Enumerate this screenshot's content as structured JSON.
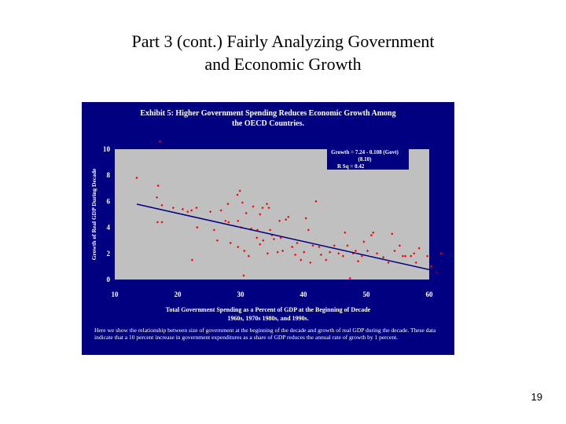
{
  "slide": {
    "title_line1": "Part 3 (cont.) Fairly Analyzing Government",
    "title_line2": "and Economic Growth",
    "page_number": "19"
  },
  "exhibit": {
    "title_line1": "Exhibit 5: Higher Government Spending Reduces Economic Growth Among",
    "title_line2": "the OECD Countries.",
    "caption": "Here we show the relationship between size of government at the beginning of the decade and growth of real GDP during the decade. These data indicate that a 10 percent increase in government expenditures as a share of GDP reduces the annual rate of growth by 1 percent."
  },
  "chart_data": {
    "type": "scatter",
    "xlabel_line1": "Total Government Spending as a Percent of GDP at the Beginning of Decade",
    "xlabel_line2": "1960s, 1970s 1980s, and 1990s.",
    "ylabel": "Growth of Real GDP During Decade",
    "xlim": [
      10,
      60
    ],
    "ylim": [
      0,
      10
    ],
    "x_ticks": [
      "10",
      "20",
      "30",
      "40",
      "50",
      "60"
    ],
    "y_ticks": [
      "0",
      "2",
      "4",
      "6",
      "8",
      "10"
    ],
    "regression": {
      "equation": "Growth = 7.24 - 0.108 (Govt)",
      "t_stat": "(8.10)",
      "r_squared": "R Sq = 0.42",
      "slope": -0.108,
      "intercept": 7.24,
      "x_range": [
        13.5,
        62
      ]
    },
    "colors": {
      "background": "#000080",
      "plot_area": "#c0c0c0",
      "points": "#ff0000",
      "trend_line": "#000080",
      "text": "#ffffff"
    },
    "points": [
      [
        13.5,
        7.8
      ],
      [
        17.2,
        10.6
      ],
      [
        16.9,
        7.2
      ],
      [
        16.7,
        6.3
      ],
      [
        16.8,
        4.4
      ],
      [
        17.5,
        4.4
      ],
      [
        17.5,
        5.7
      ],
      [
        19.3,
        5.5
      ],
      [
        20.8,
        5.4
      ],
      [
        21.6,
        5.2
      ],
      [
        22.2,
        5.3
      ],
      [
        23.0,
        5.5
      ],
      [
        22.3,
        1.5
      ],
      [
        23.1,
        4.0
      ],
      [
        25.2,
        5.2
      ],
      [
        25.8,
        3.8
      ],
      [
        26.3,
        3.0
      ],
      [
        26.9,
        5.3
      ],
      [
        27.6,
        4.5
      ],
      [
        28.1,
        4.4
      ],
      [
        28.0,
        5.8
      ],
      [
        28.4,
        2.8
      ],
      [
        29.5,
        6.5
      ],
      [
        29.9,
        6.8
      ],
      [
        29.6,
        4.5
      ],
      [
        30.3,
        5.9
      ],
      [
        30.9,
        5.1
      ],
      [
        30.1,
        4.0
      ],
      [
        29.6,
        2.5
      ],
      [
        30.6,
        2.2
      ],
      [
        31.3,
        1.8
      ],
      [
        30.5,
        0.3
      ],
      [
        31.7,
        3.9
      ],
      [
        32.0,
        5.6
      ],
      [
        32.6,
        3.2
      ],
      [
        33.1,
        5.0
      ],
      [
        33.5,
        5.5
      ],
      [
        32.7,
        3.8
      ],
      [
        33.1,
        2.7
      ],
      [
        33.6,
        3.0
      ],
      [
        34.2,
        5.8
      ],
      [
        34.5,
        5.5
      ],
      [
        34.7,
        3.8
      ],
      [
        35.0,
        3.4
      ],
      [
        34.3,
        2.0
      ],
      [
        35.3,
        3.1
      ],
      [
        35.9,
        2.1
      ],
      [
        36.2,
        4.5
      ],
      [
        36.4,
        3.2
      ],
      [
        36.7,
        2.2
      ],
      [
        37.2,
        4.6
      ],
      [
        37.6,
        4.8
      ],
      [
        38.2,
        2.5
      ],
      [
        38.7,
        1.9
      ],
      [
        39.0,
        2.8
      ],
      [
        39.6,
        1.5
      ],
      [
        40.1,
        2.1
      ],
      [
        41.1,
        1.3
      ],
      [
        40.4,
        4.7
      ],
      [
        40.8,
        3.8
      ],
      [
        41.5,
        2.6
      ],
      [
        42.5,
        2.5
      ],
      [
        42.0,
        6.0
      ],
      [
        42.8,
        1.9
      ],
      [
        43.6,
        1.5
      ],
      [
        44.2,
        2.1
      ],
      [
        44.9,
        2.6
      ],
      [
        45.6,
        2.0
      ],
      [
        46.3,
        1.8
      ],
      [
        46.6,
        3.6
      ],
      [
        47.0,
        2.6
      ],
      [
        47.4,
        0.1
      ],
      [
        47.9,
        2.0
      ],
      [
        48.3,
        2.2
      ],
      [
        48.7,
        1.4
      ],
      [
        49.3,
        1.8
      ],
      [
        49.6,
        2.9
      ],
      [
        50.2,
        2.2
      ],
      [
        50.8,
        3.4
      ],
      [
        51.1,
        3.6
      ],
      [
        51.7,
        2.0
      ],
      [
        52.7,
        1.7
      ],
      [
        53.5,
        1.3
      ],
      [
        54.1,
        3.5
      ],
      [
        54.5,
        2.2
      ],
      [
        55.3,
        2.6
      ],
      [
        55.8,
        1.8
      ],
      [
        56.2,
        1.8
      ],
      [
        57.1,
        1.8
      ],
      [
        57.6,
        2.0
      ],
      [
        57.9,
        1.3
      ],
      [
        58.4,
        2.4
      ],
      [
        59.7,
        1.8
      ],
      [
        60.3,
        1.0
      ],
      [
        61.2,
        0.6
      ],
      [
        61.9,
        2.0
      ]
    ]
  }
}
